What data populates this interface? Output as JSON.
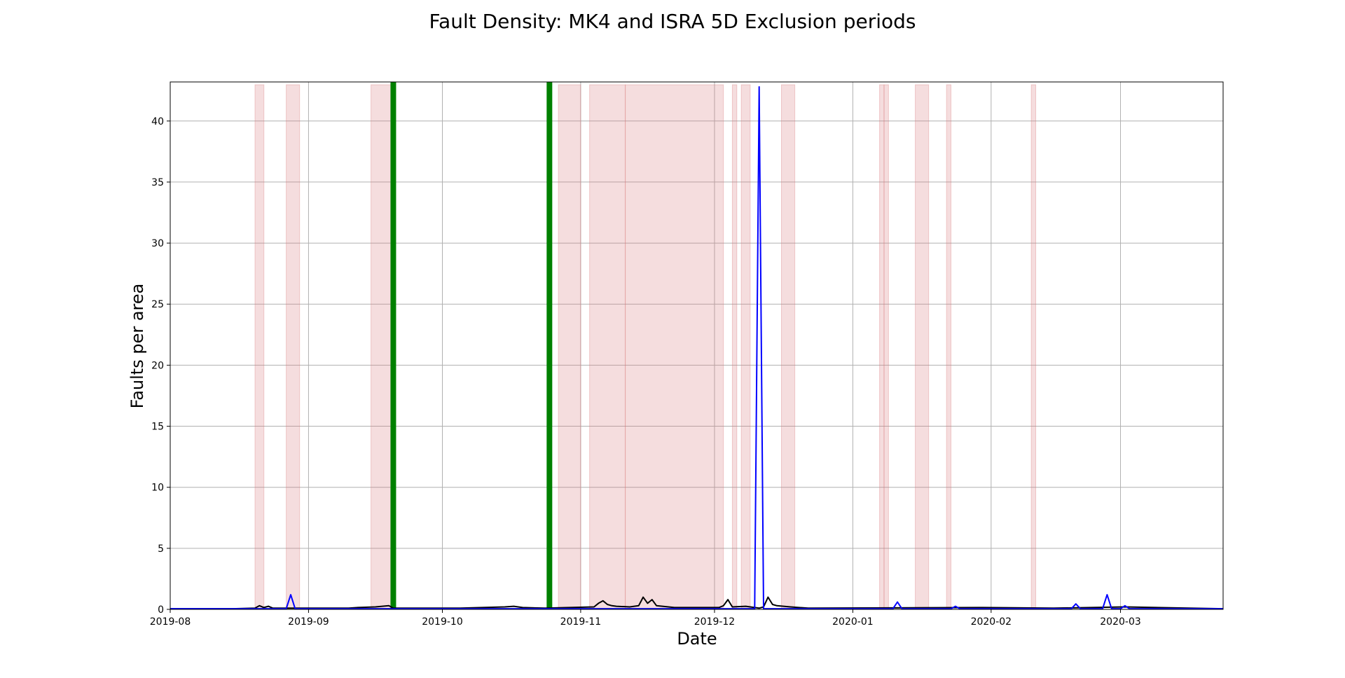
{
  "chart_data": {
    "type": "line",
    "title": "Fault Density: MK4 and ISRA 5D Exclusion periods",
    "xlabel": "Date",
    "ylabel": "Faults per area",
    "xlim": [
      "2019-08-01",
      "2020-03-24"
    ],
    "ylim": [
      0,
      43.2
    ],
    "x_ticks": [
      "2019-08",
      "2019-09",
      "2019-10",
      "2019-11",
      "2019-12",
      "2020-01",
      "2020-02",
      "2020-03"
    ],
    "y_ticks": [
      0,
      5,
      10,
      15,
      20,
      25,
      30,
      35,
      40
    ],
    "grid": true,
    "exclusion_periods": [
      [
        "2019-08-20",
        "2019-08-22"
      ],
      [
        "2019-08-27",
        "2019-08-30"
      ],
      [
        "2019-09-15",
        "2019-09-20"
      ],
      [
        "2019-10-27",
        "2019-11-01"
      ],
      [
        "2019-11-03",
        "2019-11-11"
      ],
      [
        "2019-11-11",
        "2019-12-03"
      ],
      [
        "2019-12-05",
        "2019-12-06"
      ],
      [
        "2019-12-07",
        "2019-12-09"
      ],
      [
        "2019-12-16",
        "2019-12-19"
      ],
      [
        "2020-01-07",
        "2020-01-08"
      ],
      [
        "2020-01-08",
        "2020-01-09"
      ],
      [
        "2020-01-15",
        "2020-01-18"
      ],
      [
        "2020-01-22",
        "2020-01-23"
      ],
      [
        "2020-02-10",
        "2020-02-11"
      ]
    ],
    "markers": [
      "2019-09-20",
      "2019-10-25"
    ],
    "series": [
      {
        "color": "#000000",
        "points": [
          [
            "2019-08-01",
            0.05
          ],
          [
            "2019-08-15",
            0.05
          ],
          [
            "2019-08-20",
            0.1
          ],
          [
            "2019-08-21",
            0.3
          ],
          [
            "2019-08-22",
            0.15
          ],
          [
            "2019-08-23",
            0.25
          ],
          [
            "2019-08-24",
            0.1
          ],
          [
            "2019-08-30",
            0.1
          ],
          [
            "2019-09-10",
            0.1
          ],
          [
            "2019-09-12",
            0.15
          ],
          [
            "2019-09-16",
            0.2
          ],
          [
            "2019-09-19",
            0.3
          ],
          [
            "2019-09-20",
            0.1
          ],
          [
            "2019-10-05",
            0.1
          ],
          [
            "2019-10-10",
            0.15
          ],
          [
            "2019-10-15",
            0.2
          ],
          [
            "2019-10-17",
            0.25
          ],
          [
            "2019-10-19",
            0.15
          ],
          [
            "2019-10-24",
            0.1
          ],
          [
            "2019-11-04",
            0.2
          ],
          [
            "2019-11-05",
            0.5
          ],
          [
            "2019-11-06",
            0.7
          ],
          [
            "2019-11-07",
            0.4
          ],
          [
            "2019-11-08",
            0.3
          ],
          [
            "2019-11-09",
            0.25
          ],
          [
            "2019-11-12",
            0.2
          ],
          [
            "2019-11-14",
            0.3
          ],
          [
            "2019-11-15",
            1.0
          ],
          [
            "2019-11-16",
            0.5
          ],
          [
            "2019-11-17",
            0.8
          ],
          [
            "2019-11-18",
            0.3
          ],
          [
            "2019-11-22",
            0.15
          ],
          [
            "2019-12-02",
            0.15
          ],
          [
            "2019-12-03",
            0.3
          ],
          [
            "2019-12-04",
            0.8
          ],
          [
            "2019-12-05",
            0.2
          ],
          [
            "2019-12-08",
            0.25
          ],
          [
            "2019-12-11",
            0.1
          ],
          [
            "2019-12-12",
            0.2
          ],
          [
            "2019-12-13",
            1.0
          ],
          [
            "2019-12-14",
            0.4
          ],
          [
            "2019-12-15",
            0.3
          ],
          [
            "2019-12-18",
            0.2
          ],
          [
            "2019-12-22",
            0.1
          ],
          [
            "2020-01-30",
            0.15
          ],
          [
            "2020-02-15",
            0.1
          ],
          [
            "2020-03-02",
            0.2
          ],
          [
            "2020-03-24",
            0.05
          ]
        ]
      },
      {
        "color": "#0000ff",
        "points": [
          [
            "2019-08-01",
            0.05
          ],
          [
            "2019-08-27",
            0.05
          ],
          [
            "2019-08-28",
            1.2
          ],
          [
            "2019-08-29",
            0.05
          ],
          [
            "2019-09-20",
            0.05
          ],
          [
            "2019-12-10",
            0.05
          ],
          [
            "2019-12-11",
            42.8
          ],
          [
            "2019-12-12",
            0.05
          ],
          [
            "2020-01-10",
            0.05
          ],
          [
            "2020-01-11",
            0.6
          ],
          [
            "2020-01-12",
            0.05
          ],
          [
            "2020-01-23",
            0.05
          ],
          [
            "2020-01-24",
            0.25
          ],
          [
            "2020-01-25",
            0.05
          ],
          [
            "2020-02-19",
            0.05
          ],
          [
            "2020-02-20",
            0.45
          ],
          [
            "2020-02-21",
            0.05
          ],
          [
            "2020-02-26",
            0.05
          ],
          [
            "2020-02-27",
            1.2
          ],
          [
            "2020-02-28",
            0.05
          ],
          [
            "2020-03-01",
            0.05
          ],
          [
            "2020-03-02",
            0.3
          ],
          [
            "2020-03-03",
            0.05
          ],
          [
            "2020-03-24",
            0.05
          ]
        ]
      }
    ],
    "colors": {
      "exclusion_fill": "#d9777c",
      "marker": "#008000",
      "grid": "#b0b0b0"
    }
  }
}
